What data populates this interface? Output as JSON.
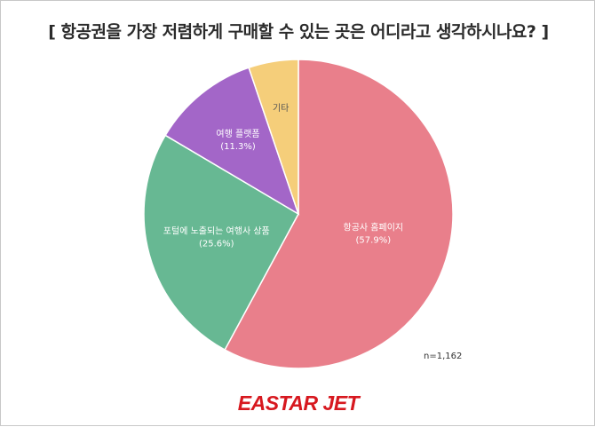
{
  "title": "[ 항공권을 가장 저렴하게 구매할 수 있는 곳은 어디라고 생각하시나요? ]",
  "note": "n=1,162",
  "logo": "EASTAR JET",
  "chart_data": {
    "type": "pie",
    "title": "[ 항공권을 가장 저렴하게 구매할 수 있는 곳은 어디라고 생각하시나요? ]",
    "slices": [
      {
        "label": "항공사 홈페이지",
        "value": 57.9,
        "display": "(57.9%)",
        "color": "#e97f8b"
      },
      {
        "label": "포털에 노출되는 여행사 상품",
        "value": 25.6,
        "display": "(25.6%)",
        "color": "#67b893"
      },
      {
        "label": "여행 플랫폼",
        "value": 11.3,
        "display": "(11.3%)",
        "color": "#a366c8"
      },
      {
        "label": "기타",
        "value": 5.2,
        "display": "",
        "color": "#f5ce7a"
      }
    ]
  }
}
